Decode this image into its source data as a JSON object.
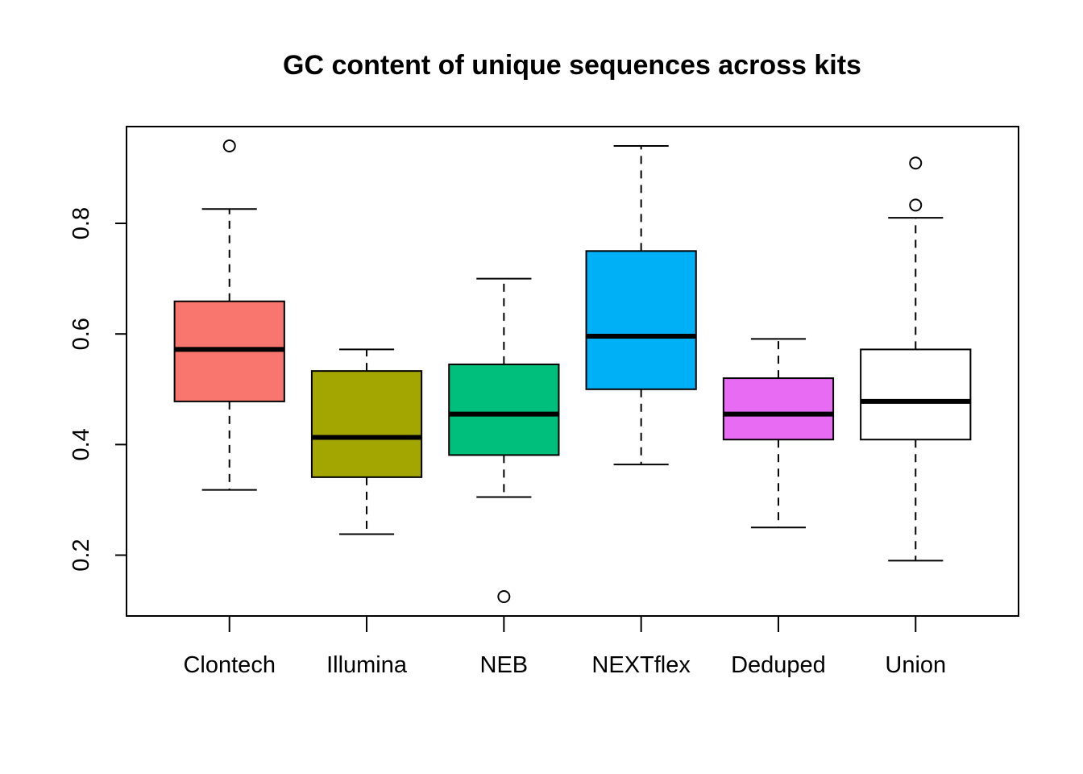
{
  "chart_data": {
    "type": "boxplot",
    "title": "GC content of unique sequences across kits",
    "xlabel": "",
    "ylabel": "",
    "ylim": [
      0.09,
      0.975
    ],
    "y_ticks": [
      "0.2",
      "0.4",
      "0.6",
      "0.8"
    ],
    "categories": [
      "Clontech",
      "Illumina",
      "NEB",
      "NEXTflex",
      "Deduped",
      "Union"
    ],
    "boxes": [
      {
        "name": "Clontech",
        "color": "#F8766D",
        "whisker_low": 0.318,
        "q1": 0.478,
        "median": 0.572,
        "q3": 0.659,
        "whisker_high": 0.826,
        "outliers": [
          0.94
        ]
      },
      {
        "name": "Illumina",
        "color": "#A3A500",
        "whisker_low": 0.238,
        "q1": 0.341,
        "median": 0.413,
        "q3": 0.533,
        "whisker_high": 0.572,
        "outliers": []
      },
      {
        "name": "NEB",
        "color": "#00BF7D",
        "whisker_low": 0.305,
        "q1": 0.381,
        "median": 0.455,
        "q3": 0.545,
        "whisker_high": 0.7,
        "outliers": [
          0.125
        ]
      },
      {
        "name": "NEXTflex",
        "color": "#00B0F6",
        "whisker_low": 0.364,
        "q1": 0.5,
        "median": 0.596,
        "q3": 0.75,
        "whisker_high": 0.94,
        "outliers": []
      },
      {
        "name": "Deduped",
        "color": "#E76BF3",
        "whisker_low": 0.25,
        "q1": 0.409,
        "median": 0.455,
        "q3": 0.52,
        "whisker_high": 0.591,
        "outliers": []
      },
      {
        "name": "Union",
        "color": "#FFFFFF",
        "whisker_low": 0.19,
        "q1": 0.409,
        "median": 0.478,
        "q3": 0.572,
        "whisker_high": 0.81,
        "outliers": [
          0.833,
          0.909
        ]
      }
    ]
  }
}
